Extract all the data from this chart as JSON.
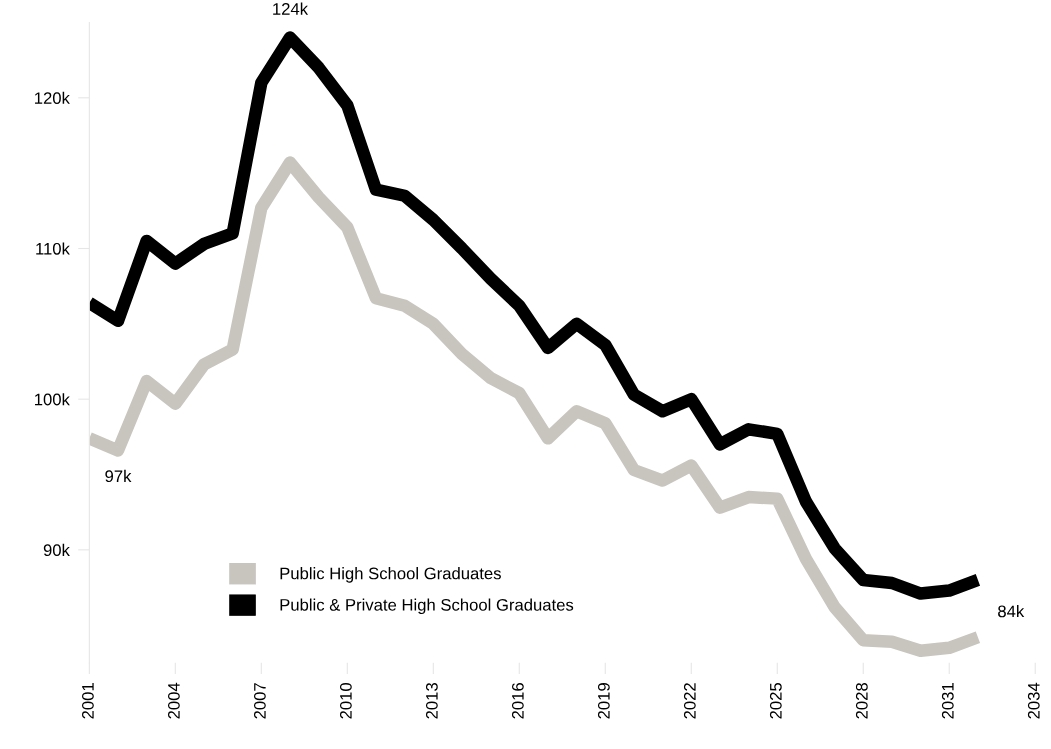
{
  "chart_data": {
    "type": "line",
    "x": [
      2001,
      2002,
      2003,
      2004,
      2005,
      2006,
      2007,
      2008,
      2009,
      2010,
      2011,
      2012,
      2013,
      2014,
      2015,
      2016,
      2017,
      2018,
      2019,
      2020,
      2021,
      2022,
      2023,
      2024,
      2025,
      2026,
      2027,
      2028,
      2029,
      2030,
      2031,
      2032
    ],
    "series": [
      {
        "name": "Public High School Graduates",
        "color": "#c8c5bf",
        "values": [
          97400,
          96600,
          101200,
          99700,
          102300,
          103300,
          112700,
          115700,
          113400,
          111400,
          106700,
          106200,
          105000,
          103000,
          101400,
          100400,
          97400,
          99200,
          98400,
          95300,
          94600,
          95600,
          92800,
          93500,
          93400,
          89400,
          86200,
          84000,
          83900,
          83300,
          83500,
          84200
        ]
      },
      {
        "name": "Public & Private High School Graduates",
        "color": "#000000",
        "values": [
          106400,
          105200,
          110500,
          109000,
          110300,
          111000,
          121000,
          124000,
          122000,
          119500,
          113900,
          113500,
          111900,
          110000,
          108000,
          106200,
          103400,
          105000,
          103600,
          100300,
          99200,
          100000,
          97000,
          98000,
          97700,
          93200,
          90100,
          88000,
          87800,
          87100,
          87300,
          88000
        ]
      }
    ],
    "xlim": [
      2001,
      2034
    ],
    "xticks": [
      2001,
      2004,
      2007,
      2010,
      2013,
      2016,
      2019,
      2022,
      2025,
      2028,
      2031,
      2034
    ],
    "ylim": [
      82500,
      125000
    ],
    "yticks": [
      {
        "value": 90000,
        "label": "90k"
      },
      {
        "value": 100000,
        "label": "100k"
      },
      {
        "value": 110000,
        "label": "110k"
      },
      {
        "value": 120000,
        "label": "120k"
      }
    ],
    "annotations": [
      {
        "text": "124k",
        "x": 2008,
        "y": 124000
      },
      {
        "text": "97k",
        "x": 2002,
        "y": 96600
      },
      {
        "text": "84k",
        "x": 2032,
        "y": 84200
      }
    ],
    "legend": "bottom",
    "grid": false,
    "line_style": "solid",
    "marker": "none"
  }
}
